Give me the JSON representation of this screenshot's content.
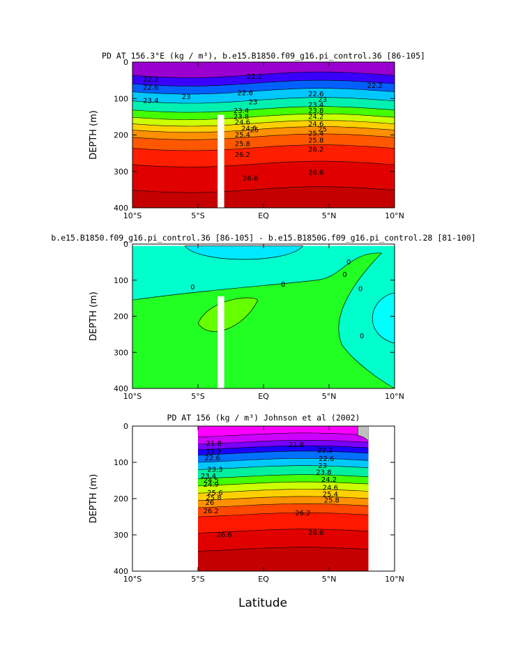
{
  "figure": {
    "xlabel": "Latitude"
  },
  "chart_data": [
    {
      "type": "heatmap",
      "title": "PD AT 156.3°E (kg / m³), b.e15.B1850.f09_g16.pi_control.36 [86-105]",
      "ylabel": "DEPTH (m)",
      "x_ticks": [
        "10°S",
        "5°S",
        "EQ",
        "5°N",
        "10°N"
      ],
      "y_ticks": [
        "0",
        "100",
        "200",
        "300",
        "400"
      ],
      "xlim": [
        -10,
        10
      ],
      "ylim": [
        0,
        400
      ],
      "bands": [
        {
          "top": 0,
          "color": "#9a00d0"
        },
        {
          "top": 35,
          "color": "#3900ff"
        },
        {
          "top": 58,
          "color": "#0060ff"
        },
        {
          "top": 80,
          "color": "#00c8ff"
        },
        {
          "top": 105,
          "color": "#00f0b0"
        },
        {
          "top": 130,
          "color": "#44ff00"
        },
        {
          "top": 150,
          "color": "#ccff00"
        },
        {
          "top": 168,
          "color": "#ffd000"
        },
        {
          "top": 185,
          "color": "#ff9000"
        },
        {
          "top": 205,
          "color": "#ff5800"
        },
        {
          "top": 235,
          "color": "#ff1e00"
        },
        {
          "top": 280,
          "color": "#e00000"
        },
        {
          "top": 350,
          "color": "#c40000"
        }
      ],
      "contour_labels": [
        {
          "text": "22.2",
          "lat": -8.6,
          "depth": 48
        },
        {
          "text": "22.6",
          "lat": -8.6,
          "depth": 70
        },
        {
          "text": "23",
          "lat": -5.9,
          "depth": 96
        },
        {
          "text": "23.4",
          "lat": -8.6,
          "depth": 106
        },
        {
          "text": "22.2",
          "lat": -0.7,
          "depth": 40
        },
        {
          "text": "22.6",
          "lat": -1.4,
          "depth": 85
        },
        {
          "text": "23",
          "lat": -0.8,
          "depth": 110
        },
        {
          "text": "23.4",
          "lat": -1.7,
          "depth": 134
        },
        {
          "text": "23.8",
          "lat": -1.7,
          "depth": 150
        },
        {
          "text": "24.6",
          "lat": -1.6,
          "depth": 166
        },
        {
          "text": "24.5",
          "lat": -1.1,
          "depth": 183
        },
        {
          "text": "25",
          "lat": -0.7,
          "depth": 187
        },
        {
          "text": "25.4",
          "lat": -1.6,
          "depth": 200
        },
        {
          "text": "25.8",
          "lat": -1.6,
          "depth": 225
        },
        {
          "text": "26.2",
          "lat": -1.6,
          "depth": 255
        },
        {
          "text": "26.6",
          "lat": -1.0,
          "depth": 320
        },
        {
          "text": "22.2",
          "lat": 8.5,
          "depth": 65
        },
        {
          "text": "22.6",
          "lat": 4.0,
          "depth": 88
        },
        {
          "text": "23",
          "lat": 4.5,
          "depth": 103
        },
        {
          "text": "23.4",
          "lat": 4.0,
          "depth": 118
        },
        {
          "text": "23.8",
          "lat": 4.0,
          "depth": 134
        },
        {
          "text": "24.2",
          "lat": 4.0,
          "depth": 150
        },
        {
          "text": "24.6",
          "lat": 4.0,
          "depth": 170
        },
        {
          "text": "25",
          "lat": 4.5,
          "depth": 185
        },
        {
          "text": "25.4",
          "lat": 4.0,
          "depth": 196
        },
        {
          "text": "25.8",
          "lat": 4.0,
          "depth": 215
        },
        {
          "text": "26.2",
          "lat": 4.0,
          "depth": 240
        },
        {
          "text": "26.6",
          "lat": 4.0,
          "depth": 303
        }
      ],
      "gap": {
        "lat0": -3.5,
        "lat1": -3.0,
        "depth0": 145,
        "depth1": 400
      }
    },
    {
      "type": "heatmap",
      "title": "b.e15.B1850.f09_g16.pi_control.36 [86-105] - b.e15.B1850G.f09_g16.pi_control.28 [81-100]",
      "ylabel": "DEPTH (m)",
      "x_ticks": [
        "10°S",
        "5°S",
        "EQ",
        "5°N",
        "10°N"
      ],
      "y_ticks": [
        "0",
        "100",
        "200",
        "300",
        "400"
      ],
      "xlim": [
        -10,
        10
      ],
      "ylim": [
        0,
        400
      ],
      "contour_labels": [
        {
          "text": "0",
          "lat": -5.4,
          "depth": 120
        },
        {
          "text": "0",
          "lat": 1.5,
          "depth": 112
        },
        {
          "text": "0",
          "lat": 6.5,
          "depth": 50
        },
        {
          "text": "0",
          "lat": 6.2,
          "depth": 85
        },
        {
          "text": "0",
          "lat": 7.4,
          "depth": 125
        },
        {
          "text": "0",
          "lat": 7.5,
          "depth": 255
        }
      ],
      "gap": {
        "lat0": -3.5,
        "lat1": -3.0,
        "depth0": 145,
        "depth1": 400
      }
    },
    {
      "type": "heatmap",
      "title": "PD AT 156 (kg / m³) Johnson et al (2002)",
      "ylabel": "DEPTH (m)",
      "x_ticks": [
        "10°S",
        "5°S",
        "EQ",
        "5°N",
        "10°N"
      ],
      "y_ticks": [
        "0",
        "100",
        "200",
        "300",
        "400"
      ],
      "xlim": [
        -10,
        10
      ],
      "ylim": [
        0,
        400
      ],
      "data_range": [
        -5,
        8
      ],
      "bands": [
        {
          "top": 0,
          "color": "#ff00ff"
        },
        {
          "top": 25,
          "color": "#cc00ff"
        },
        {
          "top": 45,
          "color": "#7a00ff"
        },
        {
          "top": 60,
          "color": "#1a00ff"
        },
        {
          "top": 75,
          "color": "#0070ff"
        },
        {
          "top": 95,
          "color": "#00c8ff"
        },
        {
          "top": 115,
          "color": "#00f0a0"
        },
        {
          "top": 140,
          "color": "#44ff00"
        },
        {
          "top": 160,
          "color": "#ccff00"
        },
        {
          "top": 180,
          "color": "#ffd000"
        },
        {
          "top": 200,
          "color": "#ff9000"
        },
        {
          "top": 220,
          "color": "#ff4800"
        },
        {
          "top": 245,
          "color": "#ff1800"
        },
        {
          "top": 290,
          "color": "#e00000"
        },
        {
          "top": 340,
          "color": "#c40000"
        }
      ],
      "contour_labels": [
        {
          "text": "21.8",
          "lat": -3.8,
          "depth": 48
        },
        {
          "text": "22.2",
          "lat": -3.8,
          "depth": 72
        },
        {
          "text": "22.6",
          "lat": -3.9,
          "depth": 88
        },
        {
          "text": "23.3",
          "lat": -3.7,
          "depth": 120
        },
        {
          "text": "23.4",
          "lat": -4.2,
          "depth": 138
        },
        {
          "text": "24.5",
          "lat": -4.0,
          "depth": 150
        },
        {
          "text": "24.9",
          "lat": -4.0,
          "depth": 162
        },
        {
          "text": "25.6",
          "lat": -3.7,
          "depth": 185
        },
        {
          "text": "25.8",
          "lat": -3.8,
          "depth": 198
        },
        {
          "text": "26",
          "lat": -4.1,
          "depth": 212
        },
        {
          "text": "26.2",
          "lat": -4.0,
          "depth": 235
        },
        {
          "text": "26.6",
          "lat": -3.0,
          "depth": 300
        },
        {
          "text": "21.8",
          "lat": 2.5,
          "depth": 52
        },
        {
          "text": "22.2",
          "lat": 4.7,
          "depth": 67
        },
        {
          "text": "22.6",
          "lat": 4.8,
          "depth": 90
        },
        {
          "text": "23",
          "lat": 4.5,
          "depth": 110
        },
        {
          "text": "23.8",
          "lat": 4.6,
          "depth": 128
        },
        {
          "text": "24.2",
          "lat": 5.0,
          "depth": 148
        },
        {
          "text": "24.6",
          "lat": 5.1,
          "depth": 170
        },
        {
          "text": "25.4",
          "lat": 5.1,
          "depth": 188
        },
        {
          "text": "25.8",
          "lat": 5.2,
          "depth": 205
        },
        {
          "text": "26.2",
          "lat": 3.0,
          "depth": 240
        },
        {
          "text": "26.6",
          "lat": 4.0,
          "depth": 294
        }
      ]
    }
  ],
  "colors": {
    "land": "#c0c0c0",
    "gap": "#ffffff"
  }
}
